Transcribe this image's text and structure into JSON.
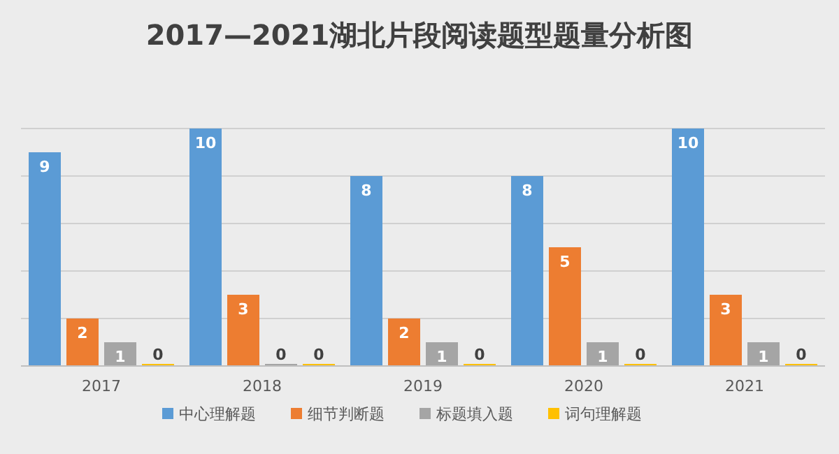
{
  "chart_data": {
    "type": "bar",
    "title": "2017—2021湖北片段阅读题型题量分析图",
    "categories": [
      "2017",
      "2018",
      "2019",
      "2020",
      "2021"
    ],
    "series": [
      {
        "name": "中心理解题",
        "color": "#5b9bd5",
        "values": [
          9,
          10,
          8,
          8,
          10
        ]
      },
      {
        "name": "细节判断题",
        "color": "#ed7d31",
        "values": [
          2,
          3,
          2,
          5,
          3
        ]
      },
      {
        "name": "标题填入题",
        "color": "#a5a5a5",
        "values": [
          1,
          0,
          1,
          1,
          1
        ]
      },
      {
        "name": "词句理解题",
        "color": "#ffc000",
        "values": [
          0,
          0,
          0,
          0,
          0
        ]
      }
    ],
    "ylim": [
      0,
      10
    ],
    "yticks": [
      {
        "value": 0,
        "label": null
      },
      {
        "value": 2,
        "label": null
      },
      {
        "value": 4,
        "label": null
      },
      {
        "value": 6,
        "label": null
      },
      {
        "value": 8,
        "label": null
      },
      {
        "value": 10,
        "label": null
      }
    ],
    "grid": "y",
    "tick_labels": "x",
    "data_labels": true,
    "legend": "bottom"
  }
}
